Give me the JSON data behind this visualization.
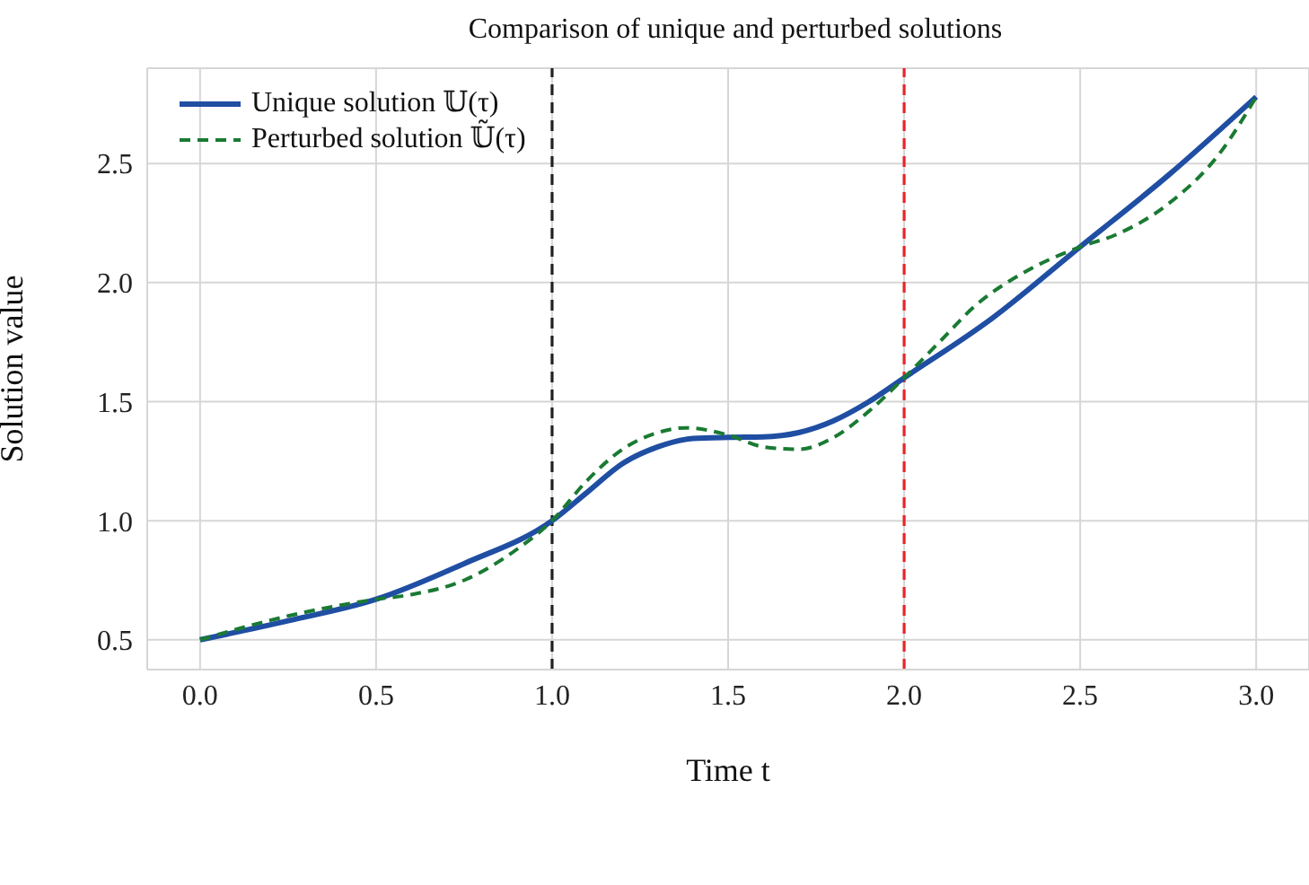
{
  "chart_data": {
    "type": "line",
    "title": "Comparison of unique and perturbed solutions",
    "xlabel": "Time t",
    "ylabel": "Solution value",
    "series": [
      {
        "name": "Unique solution 𝕌(τ)",
        "color": "#1f4ea3",
        "line_style": "solid",
        "x": [
          0,
          0.25,
          0.5,
          0.75,
          1,
          1.1,
          1.2,
          1.3,
          1.4,
          1.5,
          1.6,
          1.7,
          1.8,
          1.9,
          2,
          2.25,
          2.5,
          2.75,
          3
        ],
        "values": [
          0.5,
          0.58,
          0.67,
          0.82,
          1.0,
          1.12,
          1.24,
          1.31,
          1.345,
          1.35,
          1.352,
          1.37,
          1.42,
          1.5,
          1.6,
          1.85,
          2.15,
          2.45,
          2.78
        ]
      },
      {
        "name": "Perturbed solution 𝕌̃(τ)",
        "color": "#1a7a33",
        "line_style": "dashed",
        "x": [
          0,
          0.25,
          0.5,
          0.6,
          0.75,
          0.9,
          1,
          1.1,
          1.2,
          1.3,
          1.38,
          1.5,
          1.6,
          1.7,
          1.8,
          1.9,
          2,
          2.1,
          2.2,
          2.35,
          2.5,
          2.6,
          2.75,
          2.9,
          3
        ],
        "values": [
          0.5,
          0.6,
          0.67,
          0.69,
          0.75,
          0.88,
          1.0,
          1.17,
          1.3,
          1.37,
          1.39,
          1.36,
          1.31,
          1.3,
          1.35,
          1.46,
          1.6,
          1.75,
          1.9,
          2.05,
          2.15,
          2.2,
          2.33,
          2.55,
          2.78
        ]
      }
    ],
    "xlim": [
      -0.15,
      3.15
    ],
    "xticks": [
      {
        "value": 0,
        "label": "0.0"
      },
      {
        "value": 0.5,
        "label": "0.5"
      },
      {
        "value": 1,
        "label": "1.0"
      },
      {
        "value": 1.5,
        "label": "1.5"
      },
      {
        "value": 2,
        "label": "2.0"
      },
      {
        "value": 2.5,
        "label": "2.5"
      },
      {
        "value": 3,
        "label": "3.0"
      }
    ],
    "ylim": [
      0.375,
      2.9
    ],
    "yticks": [
      0.5,
      {
        "value": 1,
        "label": "1.0"
      },
      1.5,
      {
        "value": 2,
        "label": "2.0"
      },
      2.5
    ],
    "ref_lines": [
      {
        "axis": "x",
        "value": 1,
        "color": "#222222",
        "line_style": "dashed"
      },
      {
        "axis": "x",
        "value": 2,
        "color": "#e8252a",
        "line_style": "dashed"
      }
    ],
    "grid": true,
    "legend": "top left",
    "marker": "none"
  }
}
